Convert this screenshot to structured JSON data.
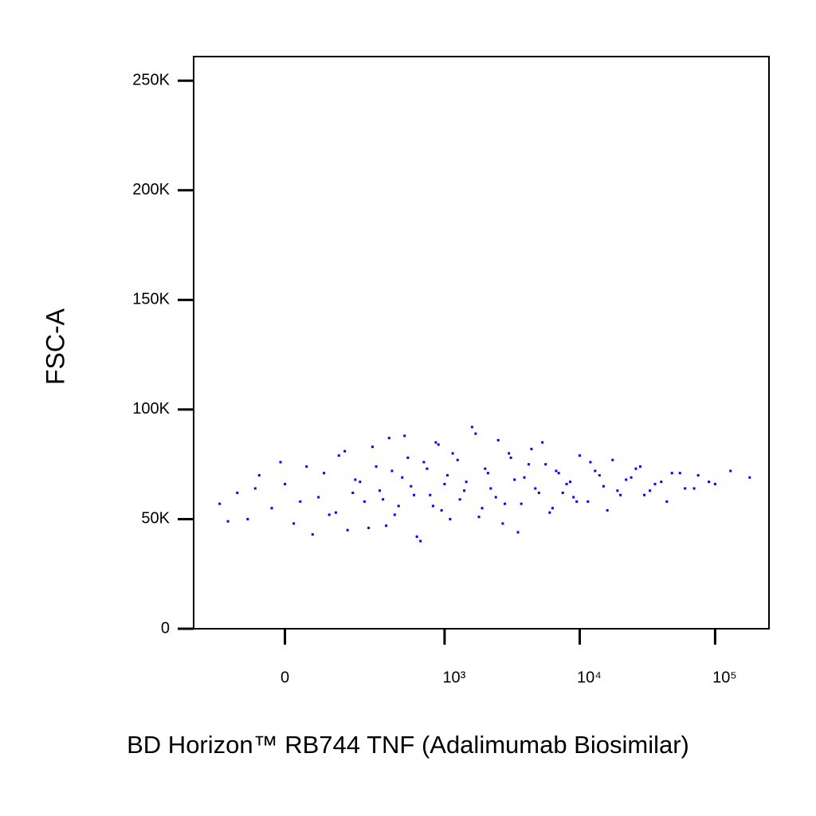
{
  "chart_data": {
    "type": "scatter",
    "x_label": "BD Horizon™ RB744 TNF (Adalimumab Biosimilar)",
    "y_label": "FSC-A",
    "xscale": "biexponential",
    "color": "#0000ff",
    "x": [
      -180,
      -120,
      -90,
      -60,
      -30,
      0,
      20,
      50,
      80,
      110,
      140,
      170,
      200,
      240,
      280,
      320,
      360,
      400,
      450,
      500,
      560,
      620,
      700,
      780,
      860,
      950,
      1050,
      1150,
      1300,
      1450,
      1600,
      1800,
      2000,
      2200,
      2500,
      2800,
      3100,
      3500,
      3900,
      4400,
      5000,
      5600,
      6300,
      7000,
      8000,
      9000,
      10000,
      11500,
      13000,
      15000,
      17500,
      20000,
      24000,
      28000,
      33000,
      40000,
      48000,
      60000,
      75000,
      100000,
      130000,
      180000,
      -150,
      -70,
      -10,
      35,
      65,
      95,
      130,
      160,
      190,
      220,
      260,
      300,
      340,
      380,
      420,
      480,
      530,
      590,
      660,
      740,
      820,
      900,
      1000,
      1100,
      1250,
      1400,
      1700,
      1900,
      2100,
      2400,
      2700,
      3000,
      3300,
      3700,
      4200,
      4700,
      5300,
      6000,
      6700,
      7500,
      8500,
      9500,
      12000,
      14000,
      16000,
      19000,
      22000,
      26000,
      30000,
      36000,
      44000,
      55000,
      70000,
      90000
    ],
    "values": [
      57000,
      62000,
      50000,
      70000,
      55000,
      66000,
      48000,
      74000,
      60000,
      52000,
      79000,
      45000,
      68000,
      58000,
      83000,
      63000,
      47000,
      72000,
      56000,
      88000,
      65000,
      42000,
      76000,
      61000,
      85000,
      54000,
      70000,
      80000,
      59000,
      67000,
      92000,
      51000,
      73000,
      64000,
      86000,
      57000,
      78000,
      44000,
      69000,
      82000,
      62000,
      75000,
      55000,
      71000,
      66000,
      60000,
      79000,
      58000,
      72000,
      65000,
      77000,
      61000,
      69000,
      74000,
      63000,
      67000,
      71000,
      64000,
      70000,
      66000,
      72000,
      69000,
      49000,
      64000,
      76000,
      58000,
      43000,
      71000,
      53000,
      81000,
      62000,
      67000,
      46000,
      74000,
      59000,
      87000,
      52000,
      69000,
      78000,
      61000,
      40000,
      73000,
      56000,
      84000,
      66000,
      50000,
      77000,
      63000,
      89000,
      55000,
      71000,
      60000,
      48000,
      80000,
      68000,
      57000,
      75000,
      64000,
      85000,
      53000,
      72000,
      62000,
      67000,
      58000,
      76000,
      70000,
      54000,
      63000,
      68000,
      73000,
      61000,
      66000,
      58000,
      71000,
      64000,
      67000
    ],
    "xlim": [
      -300,
      250000
    ],
    "xticks": [
      0,
      {
        "value": 1000,
        "label": "10³"
      },
      {
        "value": 10000,
        "label": "10⁴"
      },
      {
        "value": 100000,
        "label": "10⁵"
      }
    ],
    "ylim": [
      0,
      261000
    ],
    "yticks": [
      0,
      {
        "value": 50000,
        "label": "50K"
      },
      {
        "value": 100000,
        "label": "100K"
      },
      {
        "value": 150000,
        "label": "150K"
      },
      {
        "value": 200000,
        "label": "200K"
      },
      {
        "value": 250000,
        "label": "250K"
      }
    ]
  }
}
